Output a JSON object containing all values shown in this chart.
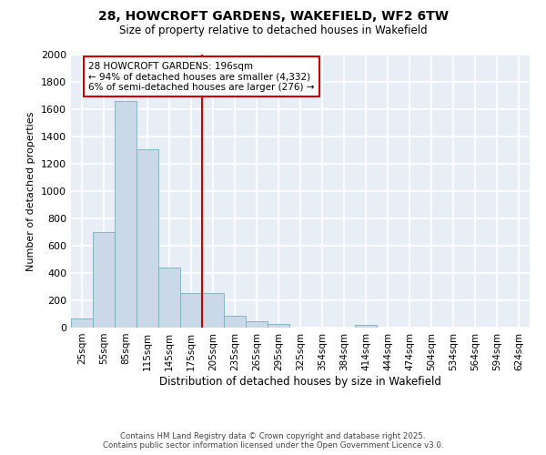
{
  "title": "28, HOWCROFT GARDENS, WAKEFIELD, WF2 6TW",
  "subtitle": "Size of property relative to detached houses in Wakefield",
  "xlabel": "Distribution of detached houses by size in Wakefield",
  "ylabel": "Number of detached properties",
  "annotation_title": "28 HOWCROFT GARDENS: 196sqm",
  "annotation_line1": "← 94% of detached houses are smaller (4,332)",
  "annotation_line2": "6% of semi-detached houses are larger (276) →",
  "footer1": "Contains HM Land Registry data © Crown copyright and database right 2025.",
  "footer2": "Contains public sector information licensed under the Open Government Licence v3.0.",
  "bar_color": "#c9d9e8",
  "bar_edge_color": "#7aaac8",
  "ref_line_color": "#cc0000",
  "annotation_box_color": "#ffffff",
  "annotation_box_edge": "#cc0000",
  "background_color": "#ffffff",
  "plot_bg_color": "#e8eef5",
  "grid_color": "#ffffff",
  "categories": [
    "25sqm",
    "55sqm",
    "85sqm",
    "115sqm",
    "145sqm",
    "175sqm",
    "205sqm",
    "235sqm",
    "265sqm",
    "295sqm",
    "325sqm",
    "354sqm",
    "384sqm",
    "414sqm",
    "444sqm",
    "474sqm",
    "504sqm",
    "534sqm",
    "564sqm",
    "594sqm",
    "624sqm"
  ],
  "values": [
    65,
    700,
    1660,
    1310,
    440,
    255,
    255,
    90,
    50,
    25,
    0,
    0,
    0,
    20,
    0,
    0,
    0,
    0,
    0,
    0,
    0
  ],
  "ref_bin_index": 6,
  "ylim": [
    0,
    2000
  ],
  "yticks": [
    0,
    200,
    400,
    600,
    800,
    1000,
    1200,
    1400,
    1600,
    1800,
    2000
  ]
}
